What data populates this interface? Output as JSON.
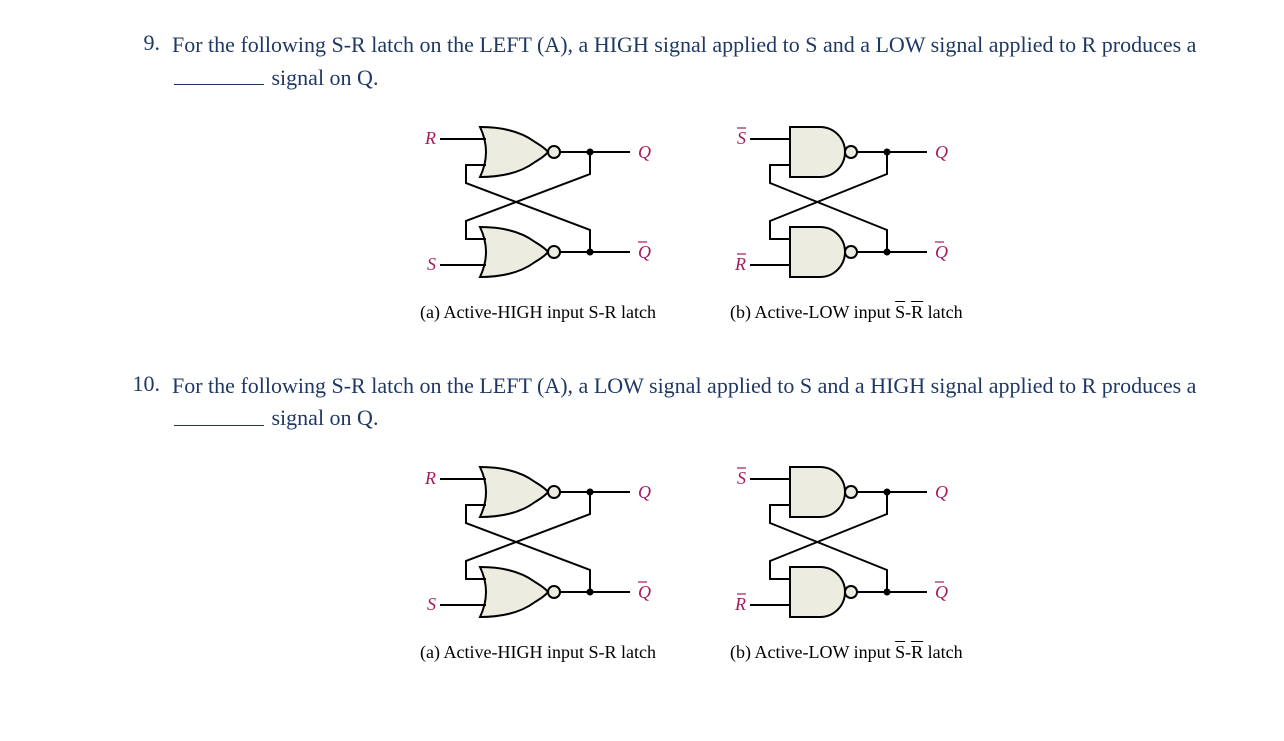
{
  "text_color": "#1f3864",
  "label_color": "#a6195d",
  "gate_fill": "#edece1",
  "questions": [
    {
      "num": "9.",
      "text_parts": [
        "For the following S-R latch on the LEFT (A), a HIGH signal applied to S and a LOW signal applied to R produces a ",
        " signal on Q."
      ],
      "figures": [
        {
          "type": "nor-latch",
          "top_in": "R",
          "top_in_bar": false,
          "bot_in": "S",
          "bot_in_bar": false,
          "top_out": "Q",
          "top_out_bar": false,
          "bot_out": "Q",
          "bot_out_bar": true,
          "caption": "(a) Active-HIGH input S-R latch"
        },
        {
          "type": "nand-latch",
          "top_in": "S",
          "top_in_bar": true,
          "bot_in": "R",
          "bot_in_bar": true,
          "top_out": "Q",
          "top_out_bar": false,
          "bot_out": "Q",
          "bot_out_bar": true,
          "caption_html": "(b) Active-LOW input <span style='text-decoration:overline'>S</span>-<span style='text-decoration:overline'>R</span> latch"
        }
      ]
    },
    {
      "num": "10.",
      "text_parts": [
        "For the following S-R latch on the LEFT (A), a LOW signal applied to S and a HIGH signal applied to R produces a ",
        " signal on Q."
      ],
      "figures": [
        {
          "type": "nor-latch",
          "top_in": "R",
          "top_in_bar": false,
          "bot_in": "S",
          "bot_in_bar": false,
          "top_out": "Q",
          "top_out_bar": false,
          "bot_out": "Q",
          "bot_out_bar": true,
          "caption": "(a) Active-HIGH input S-R latch"
        },
        {
          "type": "nand-latch",
          "top_in": "S",
          "top_in_bar": true,
          "bot_in": "R",
          "bot_in_bar": true,
          "top_out": "Q",
          "top_out_bar": false,
          "bot_out": "Q",
          "bot_out_bar": true,
          "caption_html": "(b) Active-LOW input <span style='text-decoration:overline'>S</span>-<span style='text-decoration:overline'>R</span> latch"
        }
      ]
    }
  ]
}
